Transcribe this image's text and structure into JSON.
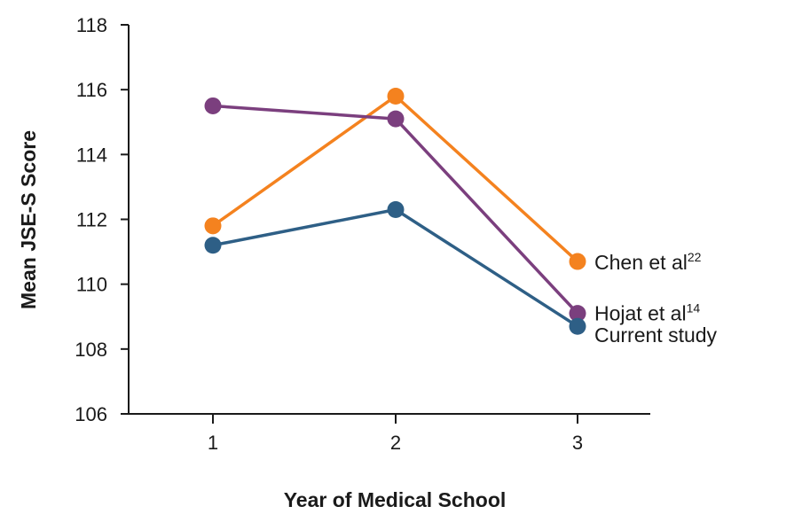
{
  "chart_data": {
    "type": "line",
    "title": "",
    "xlabel": "Year of Medical School",
    "ylabel": "Mean JSE-S Score",
    "x": [
      1,
      2,
      3
    ],
    "x_ticks": [
      "1",
      "2",
      "3"
    ],
    "xlim": [
      0.5,
      3.4
    ],
    "ylim": [
      106,
      118
    ],
    "y_ticks": [
      "106",
      "108",
      "110",
      "112",
      "114",
      "116",
      "118"
    ],
    "grid": false,
    "legend": "inline labels at right end of each series",
    "series": [
      {
        "name": "Chen et al",
        "superscript": "22",
        "color": "#f4821f",
        "values": [
          111.8,
          115.8,
          110.7
        ]
      },
      {
        "name": "Hojat et al",
        "superscript": "14",
        "color": "#7b3f7e",
        "values": [
          115.5,
          115.1,
          109.1
        ]
      },
      {
        "name": "Current study",
        "superscript": "",
        "color": "#2e5f86",
        "values": [
          111.2,
          112.3,
          108.7
        ]
      }
    ]
  }
}
